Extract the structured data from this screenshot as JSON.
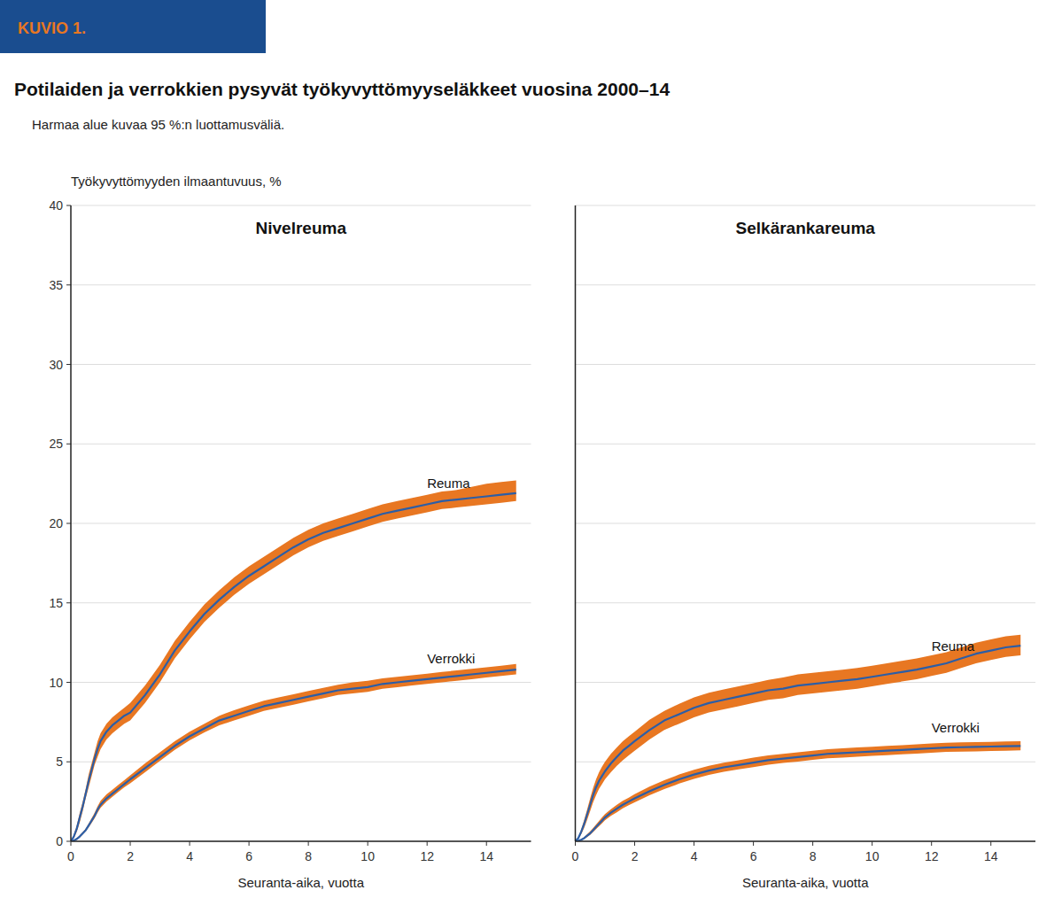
{
  "title": "Potilaiden ja verrokkien pysyvät työkyvyttömyyseläkkeet vuosina 2000–14",
  "subtitle": "Harmaa alue kuvaa 95 %:n luottamusväliä.",
  "annotations": [
    "KUVIO 1."
  ],
  "chart_data": [
    {
      "type": "line",
      "title": "Nivelreuma",
      "ylabel": "Työkyvyttömyyden ilmaantuvuus, %",
      "xlabel": "Seuranta-aika, vuotta",
      "x": [
        0,
        0.1,
        0.2,
        0.3,
        0.4,
        0.5,
        0.6,
        0.7,
        0.8,
        0.9,
        1.0,
        1.2,
        1.4,
        1.6,
        1.8,
        2.0,
        2.5,
        3.0,
        3.5,
        4.0,
        4.5,
        5.0,
        5.5,
        6.0,
        6.5,
        7.0,
        7.5,
        8.0,
        8.5,
        9.0,
        9.5,
        10.0,
        10.5,
        11.0,
        11.5,
        12.0,
        12.5,
        13.0,
        13.5,
        14.0,
        14.5,
        15.0
      ],
      "xlim": [
        0,
        15.5
      ],
      "ylim": [
        0,
        40
      ],
      "xticks": [
        0,
        2,
        4,
        6,
        8,
        10,
        12,
        14
      ],
      "yticks": [
        0,
        5,
        10,
        15,
        20,
        25,
        30,
        35,
        40
      ],
      "grid": true,
      "series": [
        {
          "name": "Reuma",
          "type": "line",
          "color": "#2b5ea7",
          "values": [
            0,
            0.3,
            0.8,
            1.5,
            2.2,
            3.0,
            3.8,
            4.5,
            5.2,
            5.8,
            6.3,
            6.9,
            7.3,
            7.6,
            7.9,
            8.1,
            9.2,
            10.5,
            12.0,
            13.2,
            14.3,
            15.2,
            16.0,
            16.7,
            17.3,
            17.9,
            18.5,
            19.0,
            19.4,
            19.7,
            20.0,
            20.3,
            20.6,
            20.8,
            21.0,
            21.2,
            21.4,
            21.5,
            21.6,
            21.7,
            21.8,
            21.9
          ]
        },
        {
          "type": "band",
          "color": "#e87722",
          "lower": [
            0,
            0.2,
            0.6,
            1.2,
            1.9,
            2.7,
            3.4,
            4.1,
            4.8,
            5.3,
            5.8,
            6.4,
            6.8,
            7.1,
            7.4,
            7.6,
            8.7,
            10.0,
            11.5,
            12.7,
            13.8,
            14.7,
            15.5,
            16.2,
            16.8,
            17.4,
            18.0,
            18.5,
            18.9,
            19.2,
            19.5,
            19.8,
            20.1,
            20.3,
            20.5,
            20.7,
            20.9,
            21.0,
            21.1,
            21.2,
            21.3,
            21.4
          ],
          "upper": [
            0,
            0.4,
            1.0,
            1.8,
            2.5,
            3.3,
            4.2,
            4.9,
            5.6,
            6.3,
            6.8,
            7.4,
            7.8,
            8.1,
            8.4,
            8.7,
            9.8,
            11.1,
            12.6,
            13.8,
            14.9,
            15.8,
            16.6,
            17.3,
            17.9,
            18.5,
            19.1,
            19.6,
            20.0,
            20.3,
            20.6,
            20.9,
            21.2,
            21.4,
            21.6,
            21.8,
            22.0,
            22.1,
            22.3,
            22.5,
            22.6,
            22.7
          ]
        },
        {
          "name": "Verrokki",
          "type": "line",
          "color": "#2b5ea7",
          "values": [
            0,
            0.05,
            0.15,
            0.3,
            0.5,
            0.7,
            1.0,
            1.3,
            1.6,
            2.0,
            2.3,
            2.7,
            3.0,
            3.3,
            3.6,
            3.9,
            4.6,
            5.3,
            6.0,
            6.6,
            7.1,
            7.6,
            7.9,
            8.2,
            8.5,
            8.7,
            8.9,
            9.1,
            9.3,
            9.5,
            9.6,
            9.7,
            9.9,
            10.0,
            10.1,
            10.2,
            10.3,
            10.4,
            10.5,
            10.6,
            10.7,
            10.8
          ]
        },
        {
          "type": "band",
          "color": "#e87722",
          "lower": [
            0,
            0.03,
            0.1,
            0.25,
            0.43,
            0.62,
            0.88,
            1.15,
            1.45,
            1.8,
            2.1,
            2.5,
            2.8,
            3.1,
            3.4,
            3.65,
            4.35,
            5.05,
            5.75,
            6.35,
            6.85,
            7.3,
            7.6,
            7.9,
            8.2,
            8.4,
            8.6,
            8.8,
            9.0,
            9.2,
            9.3,
            9.4,
            9.6,
            9.7,
            9.8,
            9.9,
            10.0,
            10.1,
            10.2,
            10.3,
            10.4,
            10.5
          ],
          "upper": [
            0,
            0.07,
            0.2,
            0.38,
            0.57,
            0.8,
            1.12,
            1.45,
            1.8,
            2.2,
            2.55,
            2.95,
            3.25,
            3.55,
            3.85,
            4.15,
            4.9,
            5.6,
            6.3,
            6.9,
            7.4,
            7.9,
            8.25,
            8.55,
            8.85,
            9.05,
            9.25,
            9.45,
            9.65,
            9.85,
            10.0,
            10.1,
            10.25,
            10.35,
            10.45,
            10.55,
            10.65,
            10.75,
            10.85,
            10.95,
            11.05,
            11.15
          ]
        }
      ]
    },
    {
      "type": "line",
      "title": "Selkärankareuma",
      "xlabel": "Seuranta-aika, vuotta",
      "x": [
        0,
        0.1,
        0.2,
        0.3,
        0.4,
        0.5,
        0.6,
        0.7,
        0.8,
        0.9,
        1.0,
        1.2,
        1.4,
        1.6,
        1.8,
        2.0,
        2.5,
        3.0,
        3.5,
        4.0,
        4.5,
        5.0,
        5.5,
        6.0,
        6.5,
        7.0,
        7.5,
        8.0,
        8.5,
        9.0,
        9.5,
        10.0,
        10.5,
        11.0,
        11.5,
        12.0,
        12.5,
        13.0,
        13.5,
        14.0,
        14.5,
        15.0
      ],
      "xlim": [
        0,
        15.5
      ],
      "ylim": [
        0,
        40
      ],
      "xticks": [
        0,
        2,
        4,
        6,
        8,
        10,
        12,
        14
      ],
      "yticks": [
        0,
        5,
        10,
        15,
        20,
        25,
        30,
        35,
        40
      ],
      "grid": true,
      "tick_labels": "x",
      "series": [
        {
          "name": "Reuma",
          "type": "line",
          "color": "#2b5ea7",
          "values": [
            0,
            0.2,
            0.6,
            1.1,
            1.7,
            2.3,
            2.9,
            3.4,
            3.8,
            4.1,
            4.4,
            4.9,
            5.3,
            5.7,
            6.0,
            6.3,
            7.0,
            7.6,
            8.0,
            8.4,
            8.7,
            8.9,
            9.1,
            9.3,
            9.5,
            9.6,
            9.8,
            9.9,
            10.0,
            10.1,
            10.2,
            10.35,
            10.5,
            10.65,
            10.8,
            11.0,
            11.2,
            11.5,
            11.8,
            12.0,
            12.2,
            12.3
          ]
        },
        {
          "type": "band",
          "color": "#e87722",
          "lower": [
            0,
            0.15,
            0.45,
            0.85,
            1.35,
            1.9,
            2.45,
            2.9,
            3.3,
            3.6,
            3.9,
            4.35,
            4.75,
            5.1,
            5.4,
            5.7,
            6.4,
            7.0,
            7.4,
            7.8,
            8.1,
            8.3,
            8.5,
            8.7,
            8.9,
            9.0,
            9.2,
            9.3,
            9.4,
            9.5,
            9.6,
            9.75,
            9.9,
            10.05,
            10.2,
            10.4,
            10.6,
            10.9,
            11.2,
            11.4,
            11.6,
            11.7
          ],
          "upper": [
            0,
            0.25,
            0.75,
            1.35,
            2.0,
            2.7,
            3.35,
            3.9,
            4.35,
            4.7,
            5.0,
            5.5,
            5.9,
            6.3,
            6.6,
            6.9,
            7.65,
            8.2,
            8.65,
            9.05,
            9.35,
            9.55,
            9.75,
            9.95,
            10.15,
            10.3,
            10.5,
            10.6,
            10.7,
            10.8,
            10.9,
            11.05,
            11.2,
            11.35,
            11.5,
            11.7,
            11.9,
            12.2,
            12.5,
            12.7,
            12.9,
            13.0
          ]
        },
        {
          "name": "Verrokki",
          "type": "line",
          "color": "#2b5ea7",
          "values": [
            0,
            0.04,
            0.1,
            0.2,
            0.35,
            0.5,
            0.7,
            0.9,
            1.1,
            1.3,
            1.5,
            1.8,
            2.05,
            2.3,
            2.5,
            2.7,
            3.15,
            3.55,
            3.9,
            4.2,
            4.45,
            4.65,
            4.8,
            4.95,
            5.1,
            5.2,
            5.3,
            5.4,
            5.5,
            5.55,
            5.6,
            5.65,
            5.7,
            5.75,
            5.8,
            5.85,
            5.9,
            5.92,
            5.94,
            5.96,
            5.98,
            6.0
          ]
        },
        {
          "type": "band",
          "color": "#e87722",
          "lower": [
            0,
            0.02,
            0.07,
            0.15,
            0.27,
            0.4,
            0.58,
            0.76,
            0.95,
            1.13,
            1.32,
            1.6,
            1.83,
            2.07,
            2.27,
            2.45,
            2.9,
            3.28,
            3.63,
            3.93,
            4.18,
            4.38,
            4.52,
            4.67,
            4.82,
            4.93,
            5.02,
            5.12,
            5.22,
            5.27,
            5.32,
            5.37,
            5.42,
            5.47,
            5.52,
            5.57,
            5.62,
            5.64,
            5.66,
            5.68,
            5.7,
            5.72
          ],
          "upper": [
            0,
            0.06,
            0.14,
            0.27,
            0.44,
            0.62,
            0.84,
            1.06,
            1.28,
            1.5,
            1.72,
            2.02,
            2.3,
            2.55,
            2.75,
            2.97,
            3.44,
            3.84,
            4.2,
            4.5,
            4.75,
            4.95,
            5.1,
            5.26,
            5.41,
            5.5,
            5.6,
            5.7,
            5.8,
            5.85,
            5.9,
            5.95,
            6.0,
            6.05,
            6.1,
            6.15,
            6.2,
            6.22,
            6.24,
            6.26,
            6.28,
            6.3
          ]
        }
      ]
    }
  ]
}
